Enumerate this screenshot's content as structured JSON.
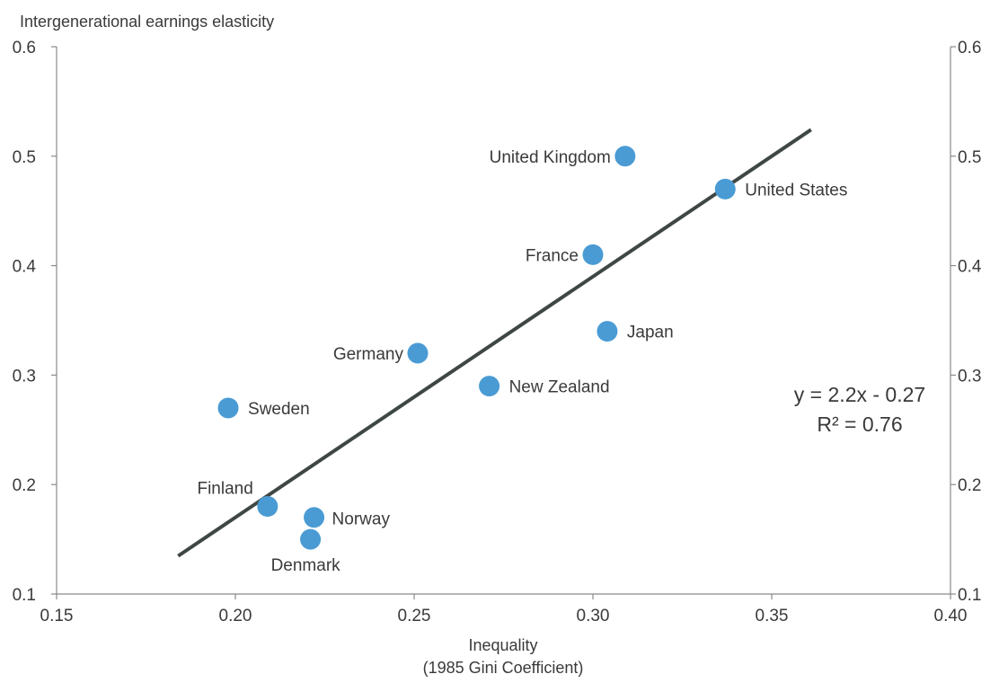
{
  "chart_data": {
    "type": "scatter",
    "title": "",
    "ylabel": "Intergenerational earnings elasticity",
    "xlabel": "Inequality",
    "xlabel_sub": "(1985 Gini Coefficient)",
    "xlim": [
      0.15,
      0.4
    ],
    "ylim": [
      0.1,
      0.6
    ],
    "x_ticks": [
      "0.15",
      "0.20",
      "0.25",
      "0.30",
      "0.35",
      "0.40"
    ],
    "y_ticks": [
      "0.1",
      "0.2",
      "0.3",
      "0.4",
      "0.5",
      "0.6"
    ],
    "y_axis_right_mirror": true,
    "grid": false,
    "points": [
      {
        "label": "United Kingdom",
        "x": 0.309,
        "y": 0.5
      },
      {
        "label": "United States",
        "x": 0.337,
        "y": 0.47
      },
      {
        "label": "France",
        "x": 0.3,
        "y": 0.41
      },
      {
        "label": "Japan",
        "x": 0.304,
        "y": 0.34
      },
      {
        "label": "Germany",
        "x": 0.251,
        "y": 0.32
      },
      {
        "label": "New Zealand",
        "x": 0.271,
        "y": 0.29
      },
      {
        "label": "Sweden",
        "x": 0.198,
        "y": 0.27
      },
      {
        "label": "Finland",
        "x": 0.209,
        "y": 0.18
      },
      {
        "label": "Norway",
        "x": 0.222,
        "y": 0.17
      },
      {
        "label": "Denmark",
        "x": 0.221,
        "y": 0.15
      }
    ],
    "trendline": {
      "x_start": 0.184,
      "x_end": 0.361,
      "equation": "y = 2.2x - 0.27",
      "r_squared": "R² = 0.76"
    },
    "colors": {
      "point": "#4a9bd4",
      "trendline": "#3f4744",
      "axis": "#8a8a8a",
      "text": "#3a3a3a"
    }
  }
}
